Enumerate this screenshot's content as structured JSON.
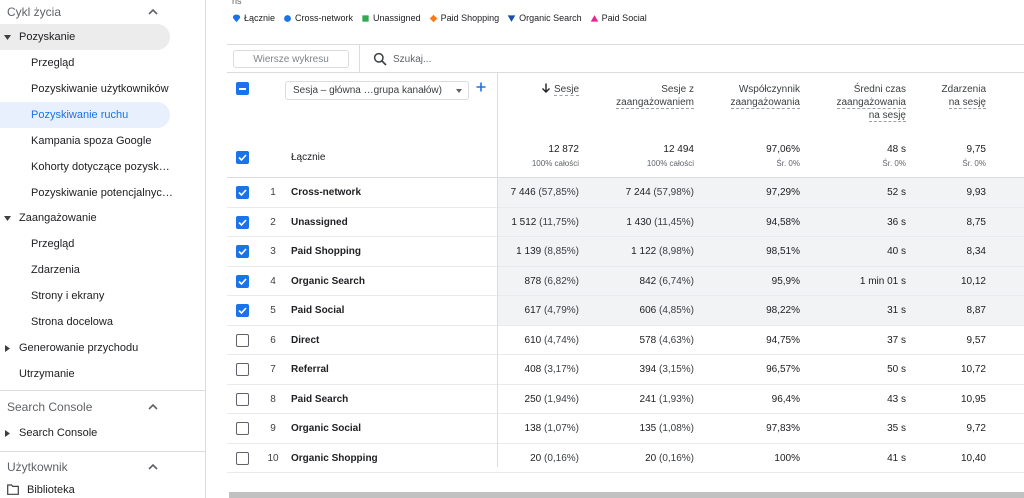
{
  "sidebar": {
    "sections": [
      {
        "label": "Cykl życia"
      },
      {
        "label": "Search Console"
      },
      {
        "label": "Użytkownik"
      }
    ],
    "lifecycle": {
      "acquisition": {
        "label": "Pozyskanie",
        "items": [
          "Przegląd",
          "Pozyskiwanie użytkowników",
          "Pozyskiwanie ruchu",
          "Kampania spoza Google",
          "Kohorty dotyczące pozysk…",
          "Pozyskiwanie potencjalnyc…"
        ]
      },
      "engagement": {
        "label": "Zaangażowanie",
        "items": [
          "Przegląd",
          "Zdarzenia",
          "Strony i ekrany",
          "Strona docelowa"
        ]
      },
      "monetization": {
        "label": "Generowanie przychodu"
      },
      "retention": {
        "label": "Utrzymanie"
      }
    },
    "search_console": {
      "label": "Search Console"
    },
    "user": {
      "library": "Biblioteka"
    }
  },
  "chart": {
    "top_cut_label": "ns",
    "legend": [
      {
        "label": "Łącznie",
        "color": "#1a73e8",
        "shape": "drop"
      },
      {
        "label": "Cross-network",
        "color": "#1a73e8",
        "shape": "circle"
      },
      {
        "label": "Unassigned",
        "color": "#34a853",
        "shape": "square"
      },
      {
        "label": "Paid Shopping",
        "color": "#fa7b17",
        "shape": "diamond"
      },
      {
        "label": "Organic Search",
        "color": "#174ea6",
        "shape": "triangle-down"
      },
      {
        "label": "Paid Social",
        "color": "#e52592",
        "shape": "triangle-up"
      }
    ]
  },
  "toolbar": {
    "chart_rows_label": "Wiersze wykresu",
    "search_placeholder": "Szukaj..."
  },
  "table": {
    "dimension_select": "Sesja – główna …grupa kanałów)",
    "columns": [
      {
        "l1": "Sesje",
        "l2": "",
        "l3": ""
      },
      {
        "l1": "Sesje z",
        "l2": "zaangażowaniem",
        "l3": ""
      },
      {
        "l1": "Współczynnik",
        "l2": "zaangażowania",
        "l3": ""
      },
      {
        "l1": "Średni czas",
        "l2": "zaangażowania",
        "l3": "na sesję"
      },
      {
        "l1": "Zdarzenia",
        "l2": "na sesję",
        "l3": ""
      }
    ],
    "total": {
      "label": "Łącznie",
      "values": [
        {
          "main": "12 872",
          "sub": "100% całości"
        },
        {
          "main": "12 494",
          "sub": "100% całości"
        },
        {
          "main": "97,06%",
          "sub": "Śr. 0%"
        },
        {
          "main": "48 s",
          "sub": "Śr. 0%"
        },
        {
          "main": "9,75",
          "sub": "Śr. 0%"
        }
      ]
    },
    "rows": [
      {
        "idx": "1",
        "name": "Cross-network",
        "selected": true,
        "sessions": "7 446",
        "sessions_pct": "(57,85%)",
        "engaged": "7 244",
        "engaged_pct": "(57,98%)",
        "rate": "97,29%",
        "time": "52 s",
        "events": "9,93"
      },
      {
        "idx": "2",
        "name": "Unassigned",
        "selected": true,
        "sessions": "1 512",
        "sessions_pct": "(11,75%)",
        "engaged": "1 430",
        "engaged_pct": "(11,45%)",
        "rate": "94,58%",
        "time": "36 s",
        "events": "8,75"
      },
      {
        "idx": "3",
        "name": "Paid Shopping",
        "selected": true,
        "sessions": "1 139",
        "sessions_pct": "(8,85%)",
        "engaged": "1 122",
        "engaged_pct": "(8,98%)",
        "rate": "98,51%",
        "time": "40 s",
        "events": "8,34"
      },
      {
        "idx": "4",
        "name": "Organic Search",
        "selected": true,
        "sessions": "878",
        "sessions_pct": "(6,82%)",
        "engaged": "842",
        "engaged_pct": "(6,74%)",
        "rate": "95,9%",
        "time": "1 min 01 s",
        "events": "10,12"
      },
      {
        "idx": "5",
        "name": "Paid Social",
        "selected": true,
        "sessions": "617",
        "sessions_pct": "(4,79%)",
        "engaged": "606",
        "engaged_pct": "(4,85%)",
        "rate": "98,22%",
        "time": "31 s",
        "events": "8,87"
      },
      {
        "idx": "6",
        "name": "Direct",
        "selected": false,
        "sessions": "610",
        "sessions_pct": "(4,74%)",
        "engaged": "578",
        "engaged_pct": "(4,63%)",
        "rate": "94,75%",
        "time": "37 s",
        "events": "9,57"
      },
      {
        "idx": "7",
        "name": "Referral",
        "selected": false,
        "sessions": "408",
        "sessions_pct": "(3,17%)",
        "engaged": "394",
        "engaged_pct": "(3,15%)",
        "rate": "96,57%",
        "time": "50 s",
        "events": "10,72"
      },
      {
        "idx": "8",
        "name": "Paid Search",
        "selected": false,
        "sessions": "250",
        "sessions_pct": "(1,94%)",
        "engaged": "241",
        "engaged_pct": "(1,93%)",
        "rate": "96,4%",
        "time": "43 s",
        "events": "10,95"
      },
      {
        "idx": "9",
        "name": "Organic Social",
        "selected": false,
        "sessions": "138",
        "sessions_pct": "(1,07%)",
        "engaged": "135",
        "engaged_pct": "(1,08%)",
        "rate": "97,83%",
        "time": "35 s",
        "events": "9,72"
      },
      {
        "idx": "10",
        "name": "Organic Shopping",
        "selected": false,
        "sessions": "20",
        "sessions_pct": "(0,16%)",
        "engaged": "20",
        "engaged_pct": "(0,16%)",
        "rate": "100%",
        "time": "41 s",
        "events": "10,40"
      }
    ]
  }
}
